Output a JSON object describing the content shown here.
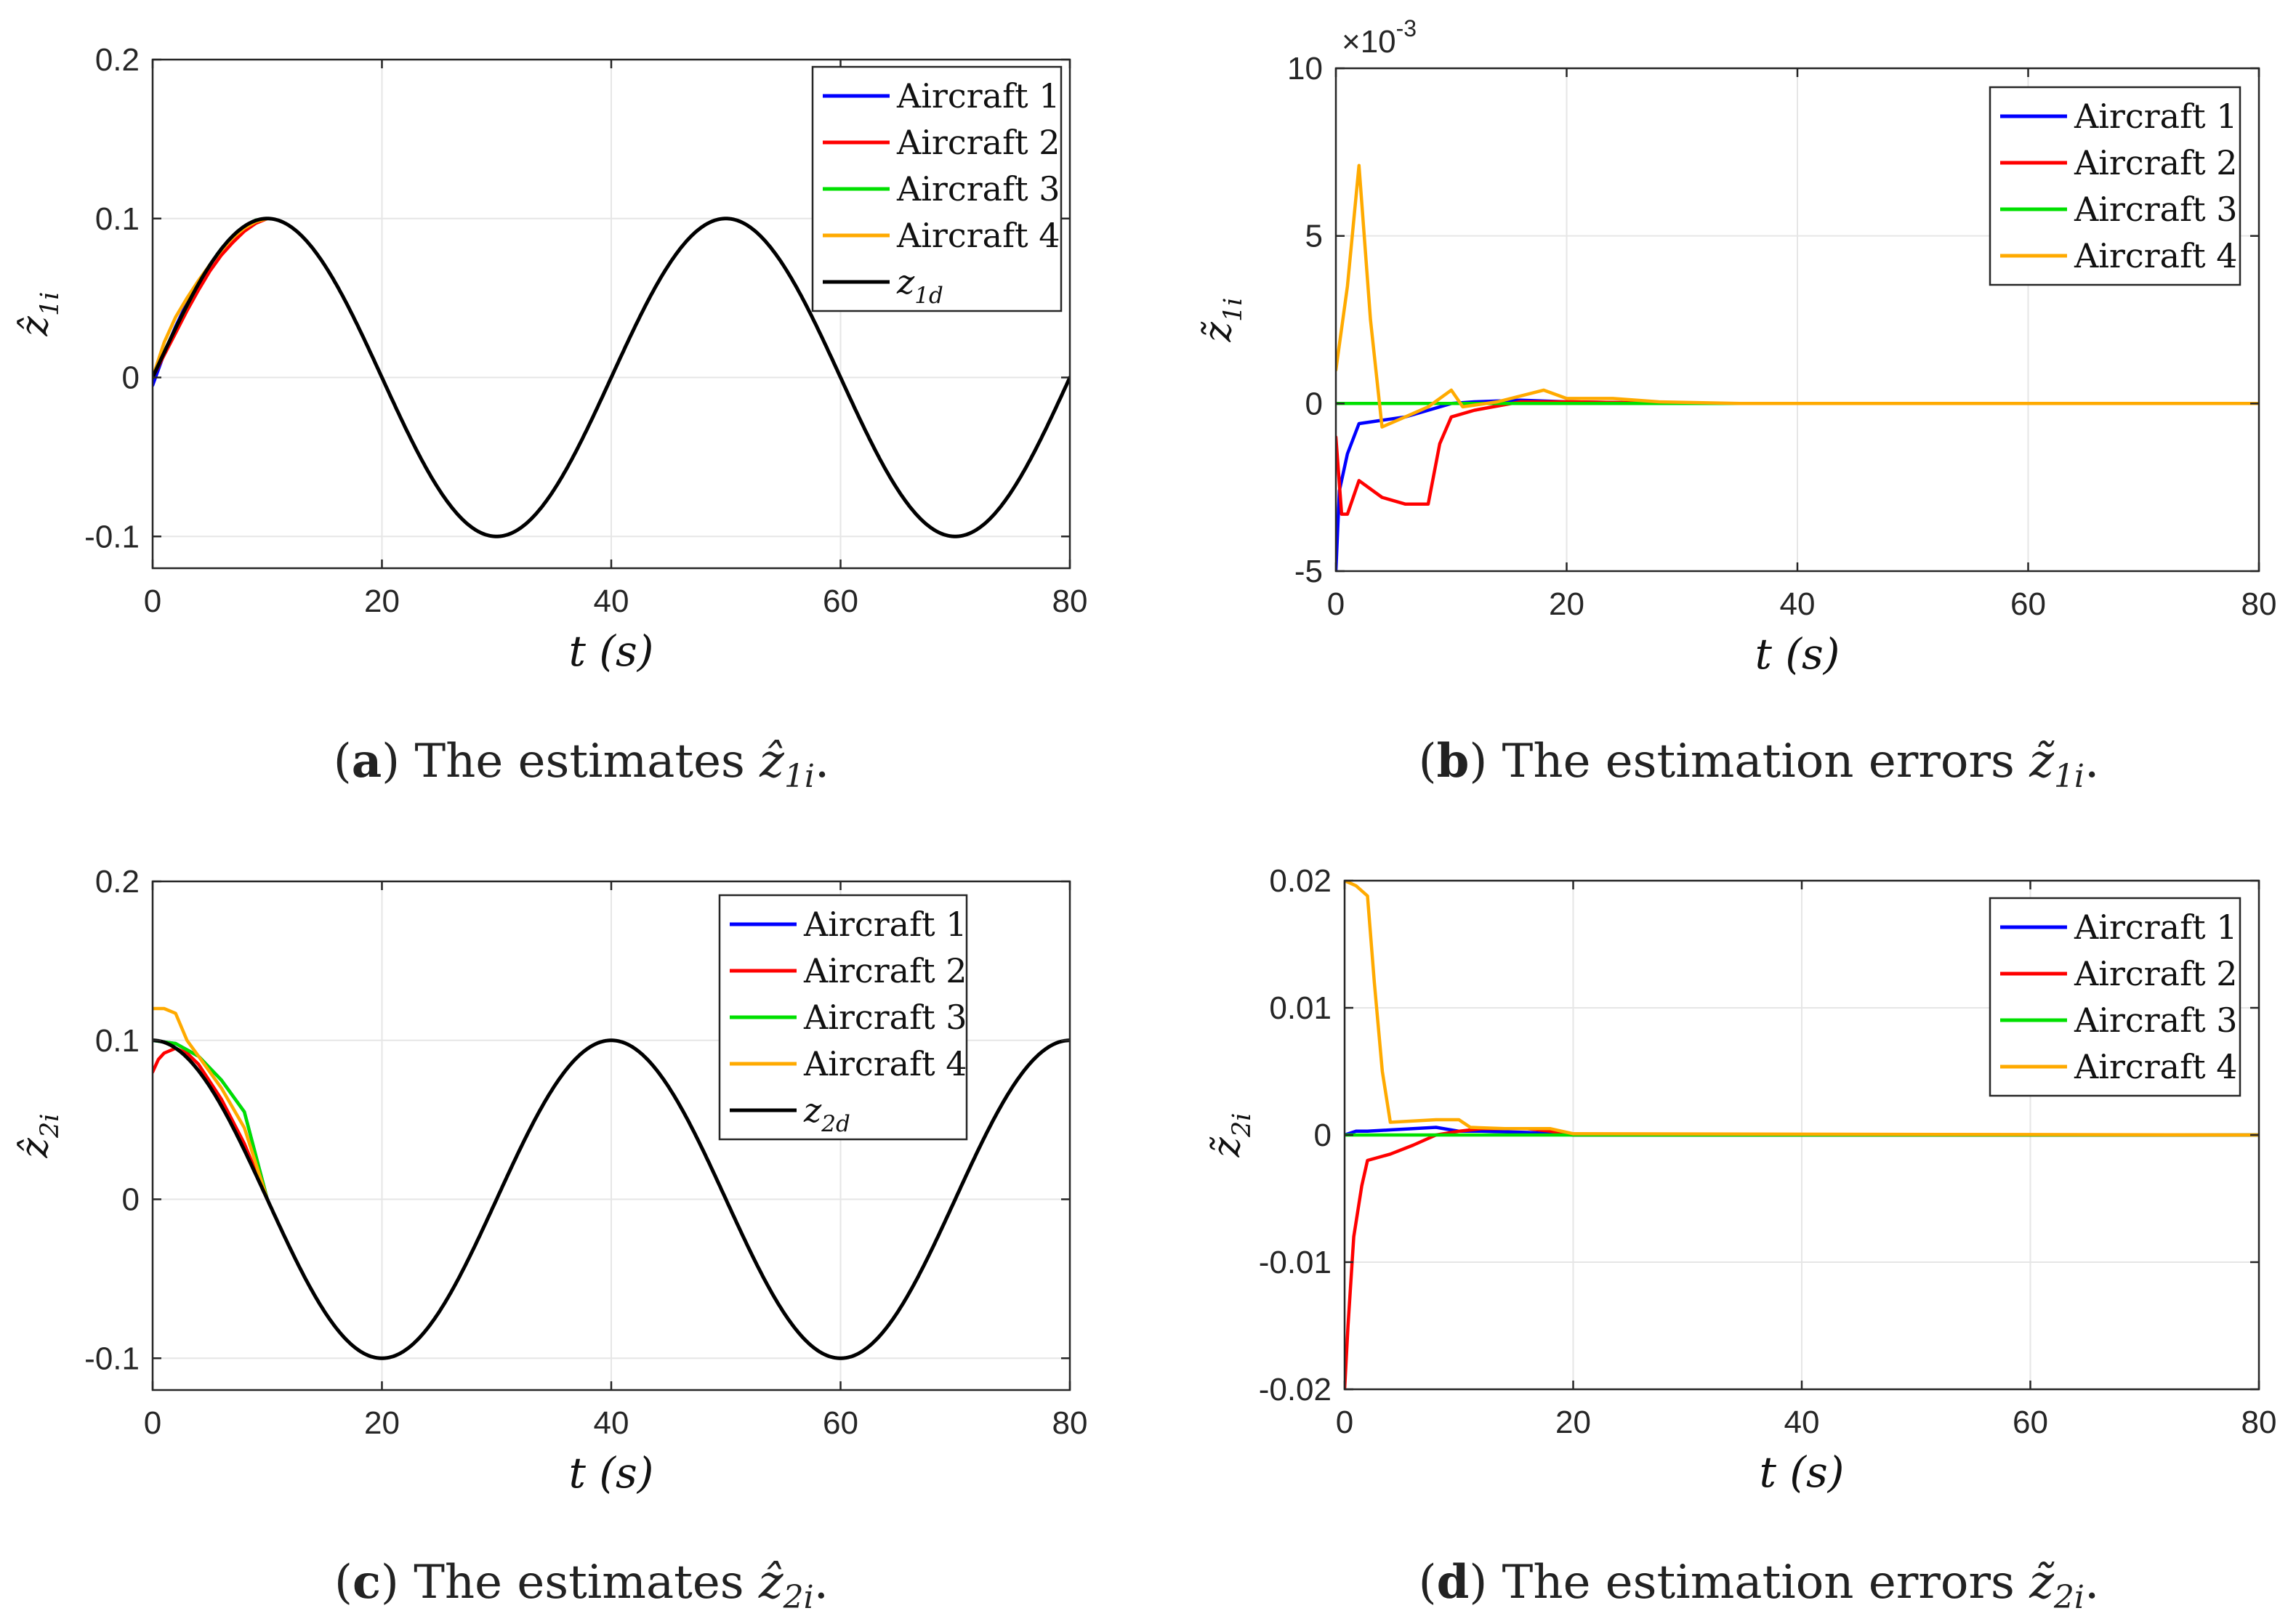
{
  "figure": {
    "panels": [
      {
        "id": "a",
        "caption": {
          "label": "a",
          "text": "The estimates",
          "sym_base": "ẑ",
          "sym_sub": "1i"
        },
        "chart_data": {
          "type": "line",
          "title": "",
          "xlabel": "t (s)",
          "ylabel": "ẑ1i",
          "xlim": [
            0,
            80
          ],
          "ylim": [
            -0.12,
            0.2
          ],
          "xticks": [
            0,
            20,
            40,
            60,
            80
          ],
          "xtick_labels": [
            "0",
            "20",
            "40",
            "60",
            "80"
          ],
          "yticks": [
            -0.1,
            0,
            0.1,
            0.2
          ],
          "ytick_labels": [
            "-0.1",
            "0",
            "0.1",
            "0.2"
          ],
          "exponent_label": "",
          "grid": true,
          "legend_position": "top-right",
          "series": [
            {
              "name": "Aircraft 1",
              "color": "#0000ff",
              "x": [
                0,
                1,
                2,
                3,
                4,
                5,
                6,
                7,
                8,
                9,
                10
              ],
              "y": [
                -0.005,
                0.015,
                0.032,
                0.047,
                0.06,
                0.071,
                0.08,
                0.088,
                0.094,
                0.098,
                0.1
              ]
            },
            {
              "name": "Aircraft 2",
              "color": "#ff0000",
              "x": [
                0,
                1,
                2,
                3,
                4,
                5,
                6,
                7,
                8,
                9,
                10
              ],
              "y": [
                0.0,
                0.014,
                0.028,
                0.042,
                0.055,
                0.067,
                0.077,
                0.085,
                0.092,
                0.097,
                0.1
              ]
            },
            {
              "name": "Aircraft 3",
              "color": "#00e000",
              "x": [
                0,
                1,
                2,
                3,
                4,
                5,
                6,
                7,
                8,
                9,
                10
              ],
              "y": [
                0.0,
                0.016,
                0.031,
                0.045,
                0.059,
                0.071,
                0.081,
                0.089,
                0.095,
                0.099,
                0.1
              ]
            },
            {
              "name": "Aircraft 4",
              "color": "#ffaa00",
              "x": [
                0,
                1,
                2,
                3,
                4,
                5,
                6,
                7,
                8,
                9,
                10
              ],
              "y": [
                0.0,
                0.022,
                0.038,
                0.05,
                0.061,
                0.071,
                0.08,
                0.088,
                0.094,
                0.098,
                0.1
              ]
            },
            {
              "name": "z1d",
              "color": "#000000",
              "func": "sin",
              "amp": 0.1,
              "period": 40,
              "phase": 0,
              "x_range": [
                0,
                80
              ]
            }
          ],
          "legend": [
            {
              "label": "Aircraft 1",
              "color": "#0000ff"
            },
            {
              "label": "Aircraft 2",
              "color": "#ff0000"
            },
            {
              "label": "Aircraft 3",
              "color": "#00e000"
            },
            {
              "label": "Aircraft 4",
              "color": "#ffaa00"
            },
            {
              "label": "z1d",
              "color": "#000000"
            }
          ]
        }
      },
      {
        "id": "b",
        "caption": {
          "label": "b",
          "text": "The estimation errors",
          "sym_base": "z̃",
          "sym_sub": "1i"
        },
        "chart_data": {
          "type": "line",
          "title": "",
          "xlabel": "t (s)",
          "ylabel": "z̃1i",
          "xlim": [
            0,
            80
          ],
          "ylim": [
            -5,
            10
          ],
          "xticks": [
            0,
            20,
            40,
            60,
            80
          ],
          "xtick_labels": [
            "0",
            "20",
            "40",
            "60",
            "80"
          ],
          "yticks": [
            -5,
            0,
            5,
            10
          ],
          "ytick_labels": [
            "-5",
            "0",
            "5",
            "10"
          ],
          "exponent_label": "×10-3",
          "grid": true,
          "legend_position": "top-right",
          "series": [
            {
              "name": "Aircraft 1",
              "color": "#0000ff",
              "x": [
                0,
                0.3,
                1,
                2,
                4,
                6,
                8,
                10,
                12,
                16,
                20,
                30,
                40,
                80
              ],
              "y": [
                -5.0,
                -2.6,
                -1.5,
                -0.6,
                -0.5,
                -0.4,
                -0.2,
                0.0,
                0.05,
                0.1,
                0.05,
                0.0,
                0.0,
                0.0
              ]
            },
            {
              "name": "Aircraft 2",
              "color": "#ff0000",
              "x": [
                0,
                0.5,
                1,
                2,
                4,
                6,
                8,
                9,
                10,
                12,
                16,
                20,
                30,
                80
              ],
              "y": [
                -1.0,
                -3.3,
                -3.3,
                -2.3,
                -2.8,
                -3.0,
                -3.0,
                -1.2,
                -0.4,
                -0.2,
                0.05,
                0.05,
                0.0,
                0.0
              ]
            },
            {
              "name": "Aircraft 3",
              "color": "#00e000",
              "x": [
                0,
                80
              ],
              "y": [
                0.0,
                0.0
              ]
            },
            {
              "name": "Aircraft 4",
              "color": "#ffaa00",
              "x": [
                0,
                1,
                2,
                3,
                4,
                6,
                8,
                10,
                11,
                14,
                18,
                20,
                24,
                28,
                35,
                80
              ],
              "y": [
                1.0,
                3.5,
                7.1,
                2.5,
                -0.7,
                -0.4,
                -0.1,
                0.4,
                -0.1,
                0.05,
                0.4,
                0.15,
                0.15,
                0.05,
                0.0,
                0.0
              ]
            }
          ],
          "legend": [
            {
              "label": "Aircraft 1",
              "color": "#0000ff"
            },
            {
              "label": "Aircraft 2",
              "color": "#ff0000"
            },
            {
              "label": "Aircraft 3",
              "color": "#00e000"
            },
            {
              "label": "Aircraft 4",
              "color": "#ffaa00"
            }
          ]
        }
      },
      {
        "id": "c",
        "caption": {
          "label": "c",
          "text": "The estimates",
          "sym_base": "ẑ",
          "sym_sub": "2i"
        },
        "chart_data": {
          "type": "line",
          "title": "",
          "xlabel": "t (s)",
          "ylabel": "ẑ2i",
          "xlim": [
            0,
            80
          ],
          "ylim": [
            -0.12,
            0.2
          ],
          "xticks": [
            0,
            20,
            40,
            60,
            80
          ],
          "xtick_labels": [
            "0",
            "20",
            "40",
            "60",
            "80"
          ],
          "yticks": [
            -0.1,
            0,
            0.1,
            0.2
          ],
          "ytick_labels": [
            "-0.1",
            "0",
            "0.1",
            "0.2"
          ],
          "exponent_label": "",
          "grid": true,
          "legend_position": "top-right",
          "series": [
            {
              "name": "Aircraft 1",
              "color": "#0000ff",
              "x": [
                0,
                2,
                4,
                6,
                8,
                10
              ],
              "y": [
                0.1,
                0.098,
                0.09,
                0.075,
                0.055,
                0.0
              ]
            },
            {
              "name": "Aircraft 2",
              "color": "#ff0000",
              "x": [
                0,
                0.5,
                1,
                2,
                3,
                4,
                6,
                8,
                10
              ],
              "y": [
                0.08,
                0.088,
                0.092,
                0.095,
                0.092,
                0.085,
                0.063,
                0.035,
                0.0
              ]
            },
            {
              "name": "Aircraft 3",
              "color": "#00e000",
              "x": [
                0,
                2,
                4,
                6,
                8,
                10
              ],
              "y": [
                0.1,
                0.098,
                0.09,
                0.075,
                0.055,
                0.0
              ]
            },
            {
              "name": "Aircraft 4",
              "color": "#ffaa00",
              "x": [
                0,
                1,
                2,
                3,
                4,
                6,
                8,
                10
              ],
              "y": [
                0.12,
                0.12,
                0.117,
                0.1,
                0.09,
                0.07,
                0.045,
                0.0
              ]
            },
            {
              "name": "z2d",
              "color": "#000000",
              "func": "cos",
              "amp": 0.1,
              "period": 40,
              "phase": 0,
              "x_range": [
                0,
                80
              ]
            }
          ],
          "legend": [
            {
              "label": "Aircraft 1",
              "color": "#0000ff"
            },
            {
              "label": "Aircraft 2",
              "color": "#ff0000"
            },
            {
              "label": "Aircraft 3",
              "color": "#00e000"
            },
            {
              "label": "Aircraft 4",
              "color": "#ffaa00"
            },
            {
              "label": "z2d",
              "color": "#000000"
            }
          ]
        }
      },
      {
        "id": "d",
        "caption": {
          "label": "d",
          "text": "The estimation errors",
          "sym_base": "z̃",
          "sym_sub": "2i"
        },
        "chart_data": {
          "type": "line",
          "title": "",
          "xlabel": "t (s)",
          "ylabel": "z̃2i",
          "xlim": [
            0,
            80
          ],
          "ylim": [
            -0.02,
            0.02
          ],
          "xticks": [
            0,
            20,
            40,
            60,
            80
          ],
          "xtick_labels": [
            "0",
            "20",
            "40",
            "60",
            "80"
          ],
          "yticks": [
            -0.02,
            -0.01,
            0,
            0.01,
            0.02
          ],
          "ytick_labels": [
            "-0.02",
            "-0.01",
            "0",
            "0.01",
            "0.02"
          ],
          "exponent_label": "",
          "grid": true,
          "legend_position": "top-right",
          "series": [
            {
              "name": "Aircraft 1",
              "color": "#0000ff",
              "x": [
                0,
                1,
                2,
                4,
                6,
                8,
                10,
                12,
                16,
                20,
                80
              ],
              "y": [
                0.0,
                0.0003,
                0.0003,
                0.0004,
                0.0005,
                0.0006,
                0.0003,
                0.0003,
                0.0002,
                0.0,
                0.0
              ]
            },
            {
              "name": "Aircraft 2",
              "color": "#ff0000",
              "x": [
                0,
                0.3,
                0.8,
                1.5,
                2,
                4,
                6,
                8,
                10,
                12,
                16,
                18,
                20,
                80
              ],
              "y": [
                -0.02,
                -0.015,
                -0.008,
                -0.004,
                -0.002,
                -0.0015,
                -0.0008,
                0.0,
                0.0003,
                0.0005,
                0.0005,
                0.0003,
                0.0,
                0.0
              ]
            },
            {
              "name": "Aircraft 3",
              "color": "#00e000",
              "x": [
                0,
                80
              ],
              "y": [
                0.0,
                0.0
              ]
            },
            {
              "name": "Aircraft 4",
              "color": "#ffaa00",
              "x": [
                0,
                1,
                2,
                2.6,
                3.3,
                4,
                6,
                8,
                10,
                11,
                14,
                18,
                20,
                80
              ],
              "y": [
                0.02,
                0.0196,
                0.0188,
                0.012,
                0.005,
                0.001,
                0.0011,
                0.0012,
                0.0012,
                0.0006,
                0.0005,
                0.0005,
                0.0001,
                0.0
              ]
            }
          ],
          "legend": [
            {
              "label": "Aircraft 1",
              "color": "#0000ff"
            },
            {
              "label": "Aircraft 2",
              "color": "#ff0000"
            },
            {
              "label": "Aircraft 3",
              "color": "#00e000"
            },
            {
              "label": "Aircraft 4",
              "color": "#ffaa00"
            }
          ]
        }
      }
    ]
  }
}
